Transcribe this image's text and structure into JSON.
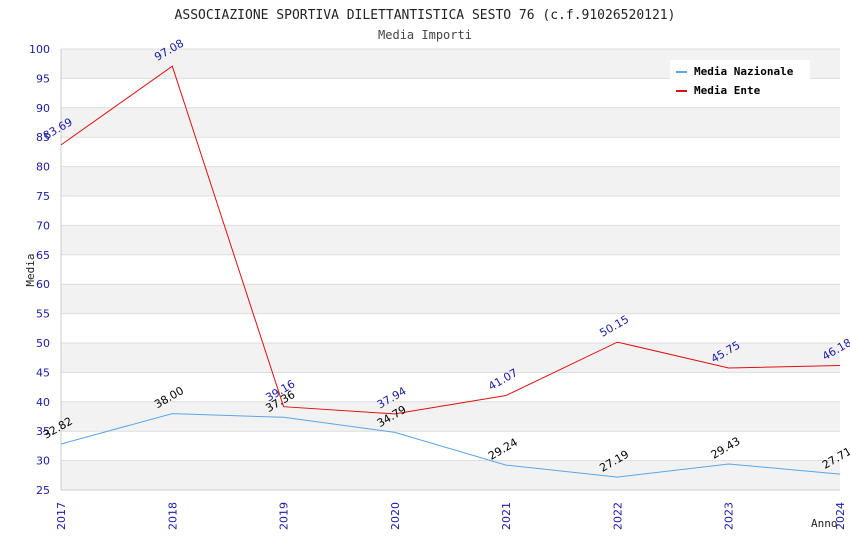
{
  "chart_data": {
    "type": "line",
    "title": "ASSOCIAZIONE SPORTIVA DILETTANTISTICA SESTO 76 (c.f.91026520121)",
    "subtitle": "Media Importi",
    "xlabel": "Anno",
    "ylabel": "Media",
    "ylim": [
      25,
      100
    ],
    "ytick_step": 5,
    "grid": true,
    "legend_position": "top-right",
    "categories": [
      "2017",
      "2018",
      "2019",
      "2020",
      "2021",
      "2022",
      "2023",
      "2024"
    ],
    "series": [
      {
        "name": "Media Nazionale",
        "color": "#5aa6e6",
        "label_color": "#000000",
        "values": [
          32.82,
          38.0,
          37.36,
          34.79,
          29.24,
          27.19,
          29.43,
          27.71
        ],
        "labels": [
          "32.82",
          "38.00",
          "37.36",
          "34.79",
          "29.24",
          "27.19",
          "29.43",
          "27.71"
        ]
      },
      {
        "name": "Media Ente",
        "color": "#e01010",
        "label_color": "#1a1aa6",
        "values": [
          83.69,
          97.08,
          39.16,
          37.94,
          41.07,
          50.15,
          45.75,
          46.18
        ],
        "labels": [
          "83.69",
          "97.08",
          "39.16",
          "37.94",
          "41.07",
          "50.15",
          "45.75",
          "46.18"
        ]
      }
    ]
  }
}
